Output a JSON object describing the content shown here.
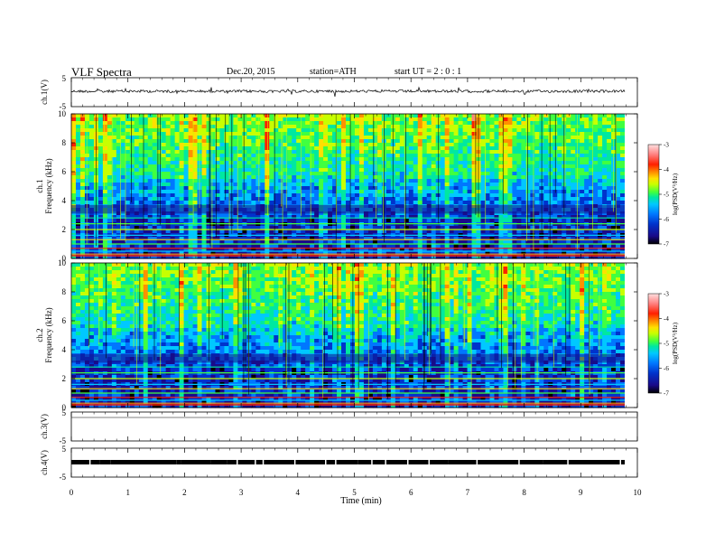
{
  "header": {
    "title": "VLF  Spectra",
    "date": "Dec.20, 2015",
    "station": "station=ATH",
    "start": "start  UT  =   2  : 0  : 1"
  },
  "chart_data": [
    {
      "type": "line",
      "ylabel": "ch.1(V)",
      "ylim": [
        -5,
        5
      ],
      "yticks": [
        "5",
        "-5"
      ],
      "description_of_values": "waveform around 0 V"
    },
    {
      "type": "heatmap",
      "ylabel": "ch.1\nFrequency  (kHz)",
      "ylabel_top": "ch.1",
      "ylabel_bottom": "Frequency  (kHz)",
      "ylim": [
        0,
        10
      ],
      "yticks": [
        "0",
        "2",
        "4",
        "6",
        "8",
        "10"
      ],
      "colorbar": {
        "label": "log(PSD(V²/Hz)",
        "range": [
          -7,
          -3
        ],
        "ticks": [
          "-3",
          "-4",
          "-5",
          "-6",
          "-7"
        ]
      }
    },
    {
      "type": "heatmap",
      "ylabel_top": "ch.2",
      "ylabel_bottom": "Frequency  (kHz)",
      "ylim": [
        0,
        10
      ],
      "yticks": [
        "0",
        "2",
        "4",
        "6",
        "8",
        "10"
      ],
      "colorbar": {
        "label": "log(PSD(V²/Hz)",
        "range": [
          -7,
          -3
        ],
        "ticks": [
          "-3",
          "-4",
          "-5",
          "-6",
          "-7"
        ]
      }
    },
    {
      "type": "line",
      "ylabel": "ch.3(V)",
      "ylim": [
        -5,
        5
      ],
      "yticks": [
        "5",
        "-5"
      ]
    },
    {
      "type": "line",
      "ylabel": "ch.4(V)",
      "ylim": [
        -5,
        5
      ],
      "yticks": [
        "5",
        "-5"
      ]
    }
  ],
  "xaxis": {
    "label": "Time  (min)",
    "range": [
      0,
      10
    ],
    "ticks": [
      "0",
      "1",
      "2",
      "3",
      "4",
      "5",
      "6",
      "7",
      "8",
      "9",
      "10"
    ]
  },
  "colors": {
    "colormap": [
      "#000000",
      "#1a0a8a",
      "#0033cc",
      "#0077ff",
      "#00c8ff",
      "#00e8a0",
      "#40ff40",
      "#c8ff00",
      "#ffe000",
      "#ff9000",
      "#ff2000",
      "#ff8080",
      "#ffe0e0"
    ]
  }
}
